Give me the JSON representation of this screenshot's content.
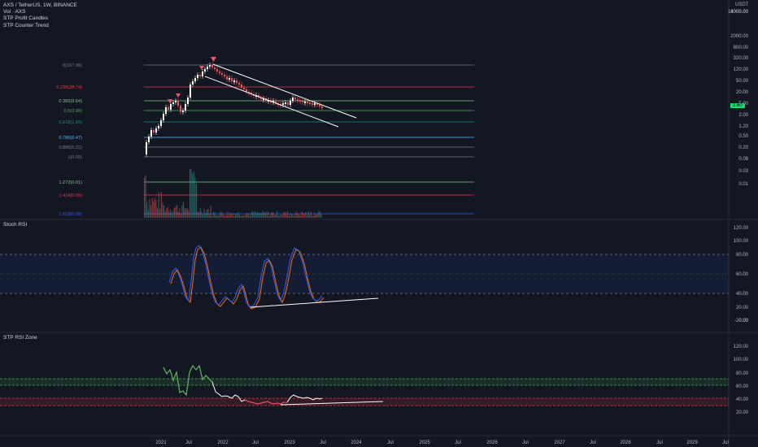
{
  "legend": {
    "symbol": "AXS / TetherUS, 1W, BINANCE",
    "volume": "Vol · AXS",
    "indicator1": "STP Profit Candles",
    "indicator2": "STP Counter Trend"
  },
  "price_axis": {
    "currency": "USDT",
    "ticks": [
      "14000.00",
      "8000.00",
      "2000.00",
      "800.00",
      "320.00",
      "120.00",
      "50.00",
      "20.00",
      "5.00",
      "2.00",
      "1.20",
      "0.50",
      "0.20",
      "0.08",
      "0.03",
      "0.01"
    ],
    "current_price": "3.60",
    "current_price_color": "#00e676"
  },
  "fib_levels": [
    {
      "label": "0(167.96)",
      "color": "#787b86"
    },
    {
      "label": "0.236(28.74)",
      "color": "#f23645"
    },
    {
      "label": "0.382(9.64)",
      "color": "#81c784"
    },
    {
      "label": "0.5(3.99)",
      "color": "#4caf50"
    },
    {
      "label": "0.618(1.65)",
      "color": "#089981"
    },
    {
      "label": "0.786(0.47)",
      "color": "#64b5f6"
    },
    {
      "label": "0.886(0.22)",
      "color": "#787b86"
    },
    {
      "label": "1(0.09)",
      "color": "#787b86"
    },
    {
      "label": "1.272(0.01)",
      "color": "#81c784"
    },
    {
      "label": "1.414(0.00)",
      "color": "#f23645"
    },
    {
      "label": "1.618(0.00)",
      "color": "#2962ff"
    }
  ],
  "stoch_rsi": {
    "title": "Stoch RSI",
    "ticks": [
      "120.00",
      "100.00",
      "80.00",
      "60.00",
      "40.00",
      "20.00",
      "0.00",
      "-20.00"
    ],
    "k_color": "#2962ff",
    "d_color": "#ff6d00"
  },
  "stp_rsi_zone": {
    "title": "STP RSI Zone",
    "ticks": [
      "120.00",
      "100.00",
      "80.00",
      "60.00",
      "40.00",
      "20.00"
    ]
  },
  "time_axis": {
    "labels": [
      "2021",
      "Jul",
      "2022",
      "Jul",
      "2023",
      "Jul",
      "2024",
      "Jul",
      "2025",
      "Jul",
      "2026",
      "Jul",
      "2027",
      "Jul",
      "2028",
      "Jul",
      "2029",
      "Jul"
    ]
  }
}
